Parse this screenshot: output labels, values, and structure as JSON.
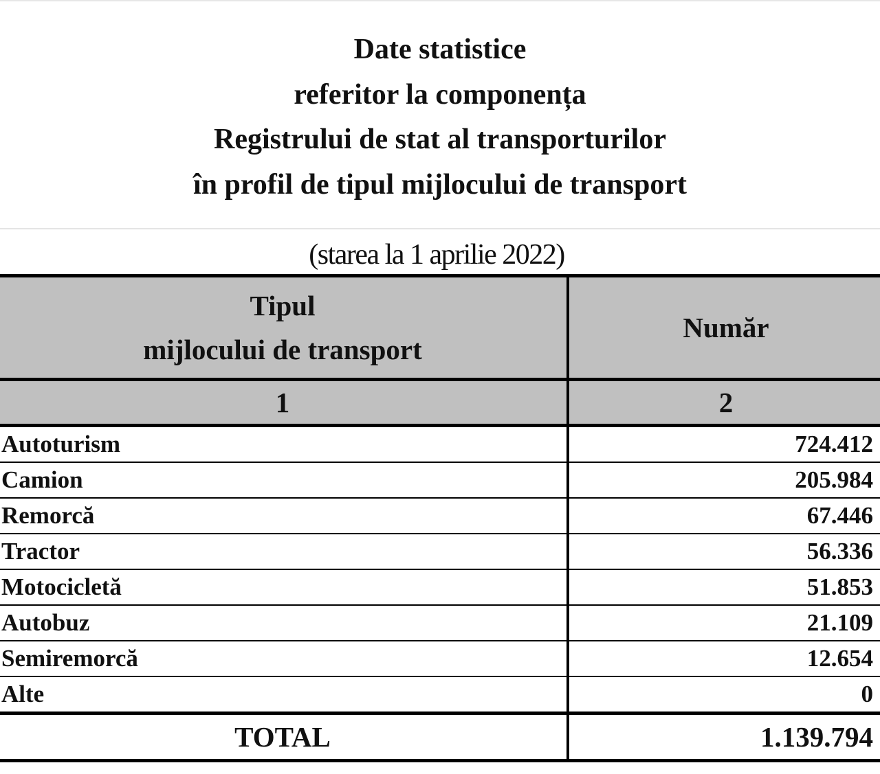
{
  "title_lines": [
    "Date statistice",
    "referitor la componența",
    "Registrului de stat al transporturilor",
    "în profil de tipul mijlocului de transport"
  ],
  "subtitle": "(starea la 1 aprilie 2022)",
  "table": {
    "headers": [
      "Tipul",
      "mijlocului de transport",
      "Număr"
    ],
    "column_numbers": [
      "1",
      "2"
    ],
    "rows": [
      {
        "type": "Autoturism",
        "count": "724.412"
      },
      {
        "type": "Camion",
        "count": "205.984"
      },
      {
        "type": "Remorcă",
        "count": "67.446"
      },
      {
        "type": "Tractor",
        "count": "56.336"
      },
      {
        "type": "Motocicletă",
        "count": "51.853"
      },
      {
        "type": "Autobuz",
        "count": "21.109"
      },
      {
        "type": "Semiremorcă",
        "count": "12.654"
      },
      {
        "type": "Alte",
        "count": "0"
      }
    ],
    "total_label": "TOTAL",
    "total_value": "1.139.794"
  },
  "colors": {
    "header_bg": "#c0c0c0",
    "border": "#000000"
  }
}
